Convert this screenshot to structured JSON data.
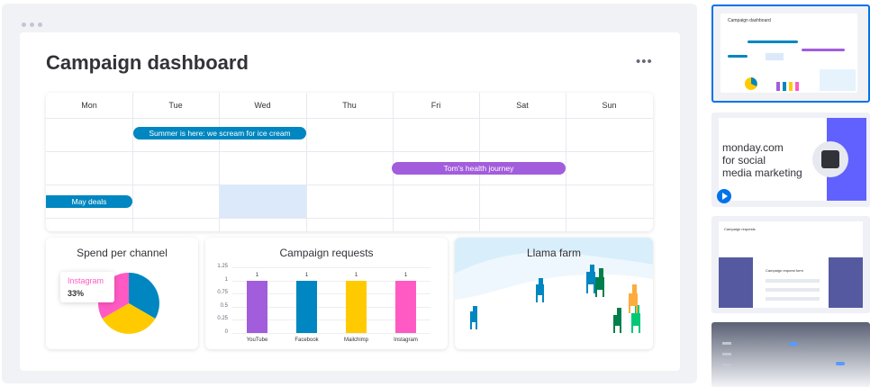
{
  "board": {
    "title": "Campaign dashboard",
    "menu_label": "•••"
  },
  "calendar": {
    "days": [
      "Mon",
      "Tue",
      "Wed",
      "Thu",
      "Fri",
      "Sat",
      "Sun"
    ],
    "events": [
      {
        "label": "Summer is here: we scream for ice cream",
        "color": "#0086c0"
      },
      {
        "label": "Tom's health journey",
        "color": "#a25ddc"
      },
      {
        "label": "May deals",
        "color": "#0086c0"
      }
    ]
  },
  "spend_widget": {
    "title": "Spend per channel",
    "tooltip_label": "Instagram",
    "tooltip_value": "33%"
  },
  "requests_widget": {
    "title": "Campaign requests",
    "chart_data": {
      "type": "bar",
      "categories": [
        "YouTube",
        "Facebook",
        "Mailchimp",
        "Instagram"
      ],
      "values": [
        1,
        1,
        1,
        1
      ],
      "colors": [
        "#a25ddc",
        "#0086c0",
        "#ffcb00",
        "#ff5ac4"
      ],
      "ylim": [
        0,
        1.25
      ],
      "yticks": [
        "1.25",
        "1",
        "0.75",
        "0.5",
        "0.25",
        "0"
      ]
    }
  },
  "llama_widget": {
    "title": "Llama farm"
  },
  "right_panel": {
    "thumb1_title": "Campaign dashboard",
    "promo_line1": "monday.com",
    "promo_line2": "for social",
    "promo_line3": "media marketing",
    "thumb3_title": "Campaign requests",
    "thumb3_form_title": "Campaign request form"
  },
  "colors": {
    "accent_blue": "#0073ea",
    "purple": "#a25ddc",
    "dark_blue": "#0086c0",
    "yellow": "#ffcb00",
    "pink": "#ff5ac4",
    "promo_purple": "#6161ff"
  }
}
